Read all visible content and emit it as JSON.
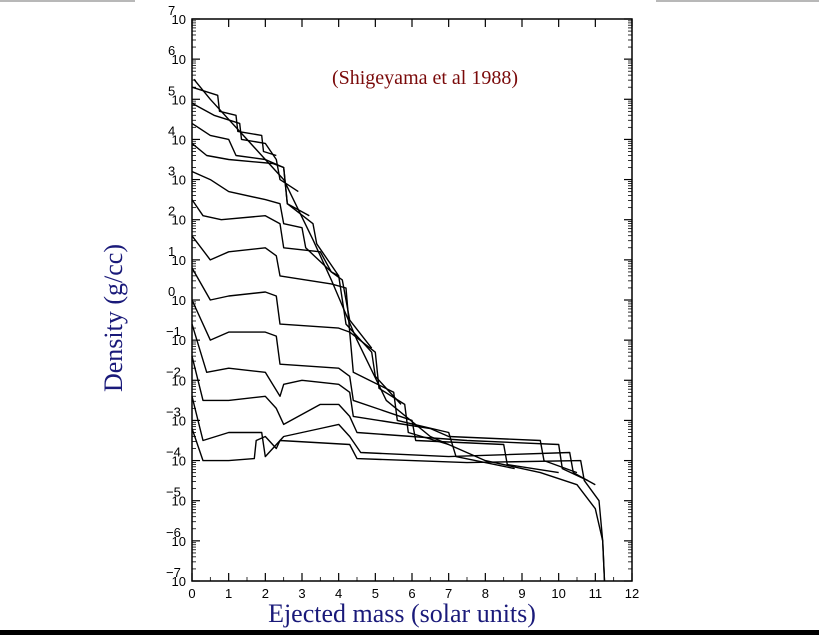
{
  "chart_data": {
    "type": "line",
    "title": "",
    "annotation": "(Shigeyama et al 1988)",
    "xlabel": "Ejected mass (solar units)",
    "ylabel": "Density (g/cc)",
    "xlim": [
      0,
      12
    ],
    "ylim_log10": [
      -7,
      7
    ],
    "x_ticks": [
      "0",
      "1",
      "2",
      "3",
      "4",
      "5",
      "6",
      "7",
      "8",
      "9",
      "10",
      "11",
      "12"
    ],
    "y_ticks": [
      {
        "base": "10",
        "exp": "7"
      },
      {
        "base": "10",
        "exp": "6"
      },
      {
        "base": "10",
        "exp": "5"
      },
      {
        "base": "10",
        "exp": "4"
      },
      {
        "base": "10",
        "exp": "3"
      },
      {
        "base": "10",
        "exp": "2"
      },
      {
        "base": "10",
        "exp": "1"
      },
      {
        "base": "10",
        "exp": "0"
      },
      {
        "base": "10",
        "exp": "-1"
      },
      {
        "base": "10",
        "exp": "-2"
      },
      {
        "base": "10",
        "exp": "-3"
      },
      {
        "base": "10",
        "exp": "-4"
      },
      {
        "base": "10",
        "exp": "-5"
      },
      {
        "base": "10",
        "exp": "-6"
      },
      {
        "base": "10",
        "exp": "-7"
      }
    ],
    "log_y": true,
    "grid": false,
    "series": [
      {
        "values_log10": [
          [
            0.05,
            5.5
          ],
          [
            0.5,
            5.0
          ],
          [
            1.5,
            4.0
          ],
          [
            2.5,
            3.0
          ],
          [
            3.3,
            1.5
          ],
          [
            3.8,
            0.5
          ],
          [
            4.5,
            -1.0
          ],
          [
            5.3,
            -2.5
          ],
          [
            6.5,
            -3.4
          ],
          [
            8.0,
            -4.0
          ],
          [
            9.5,
            -4.3
          ],
          [
            10.5,
            -4.6
          ],
          [
            11.0,
            -5.2
          ],
          [
            11.2,
            -6.0
          ],
          [
            11.25,
            -7.0
          ]
        ]
      },
      {
        "values_log10": [
          [
            0.0,
            5.3
          ],
          [
            0.7,
            5.1
          ],
          [
            0.75,
            4.7
          ],
          [
            1.2,
            4.6
          ],
          [
            1.25,
            4.2
          ],
          [
            1.9,
            4.1
          ],
          [
            1.95,
            3.7
          ],
          [
            2.3,
            3.6
          ]
        ]
      },
      {
        "values_log10": [
          [
            0.0,
            4.9
          ],
          [
            0.6,
            4.6
          ],
          [
            1.3,
            4.4
          ],
          [
            1.35,
            4.0
          ],
          [
            2.0,
            3.9
          ],
          [
            2.3,
            3.5
          ],
          [
            2.4,
            3.0
          ],
          [
            2.9,
            2.7
          ]
        ]
      },
      {
        "values_log10": [
          [
            0.0,
            4.4
          ],
          [
            0.5,
            4.1
          ],
          [
            1.0,
            4.0
          ],
          [
            1.2,
            3.6
          ],
          [
            2.0,
            3.5
          ],
          [
            2.5,
            3.3
          ],
          [
            2.6,
            2.4
          ],
          [
            3.2,
            2.1
          ]
        ]
      },
      {
        "values_log10": [
          [
            0.0,
            3.9
          ],
          [
            0.4,
            3.6
          ],
          [
            1.0,
            3.5
          ],
          [
            2.2,
            3.4
          ],
          [
            2.5,
            3.3
          ],
          [
            2.6,
            2.4
          ],
          [
            3.3,
            1.9
          ],
          [
            3.4,
            1.4
          ],
          [
            4.0,
            0.6
          ]
        ]
      },
      {
        "values_log10": [
          [
            0.0,
            3.2
          ],
          [
            0.5,
            3.0
          ],
          [
            1.0,
            2.7
          ],
          [
            2.0,
            2.5
          ],
          [
            2.4,
            2.4
          ],
          [
            2.5,
            1.9
          ],
          [
            3.0,
            1.8
          ],
          [
            3.1,
            1.3
          ],
          [
            3.8,
            0.7
          ],
          [
            4.1,
            0.5
          ],
          [
            4.3,
            -0.5
          ],
          [
            4.9,
            -1.2
          ]
        ]
      },
      {
        "values_log10": [
          [
            0.0,
            2.5
          ],
          [
            0.3,
            2.1
          ],
          [
            0.8,
            2.0
          ],
          [
            2.0,
            2.1
          ],
          [
            2.4,
            1.9
          ],
          [
            2.5,
            1.3
          ],
          [
            3.5,
            1.2
          ],
          [
            3.8,
            0.7
          ],
          [
            4.0,
            0.6
          ],
          [
            4.2,
            -0.6
          ],
          [
            4.9,
            -1.3
          ],
          [
            5.0,
            -1.9
          ],
          [
            5.7,
            -2.6
          ]
        ]
      },
      {
        "values_log10": [
          [
            0.0,
            1.6
          ],
          [
            0.5,
            1.0
          ],
          [
            1.0,
            1.2
          ],
          [
            2.0,
            1.3
          ],
          [
            2.3,
            1.1
          ],
          [
            2.4,
            0.6
          ],
          [
            3.8,
            0.4
          ],
          [
            4.2,
            0.3
          ],
          [
            4.3,
            -0.8
          ],
          [
            5.0,
            -1.3
          ],
          [
            5.1,
            -2.2
          ],
          [
            5.8,
            -2.6
          ],
          [
            5.9,
            -3.3
          ],
          [
            7.0,
            -3.6
          ]
        ]
      },
      {
        "values_log10": [
          [
            0.0,
            0.8
          ],
          [
            0.5,
            0.0
          ],
          [
            1.0,
            0.1
          ],
          [
            2.0,
            0.2
          ],
          [
            2.3,
            0.1
          ],
          [
            2.4,
            -0.6
          ],
          [
            4.0,
            -0.7
          ],
          [
            4.3,
            -0.8
          ],
          [
            4.4,
            -1.8
          ],
          [
            5.5,
            -2.3
          ],
          [
            5.6,
            -3.0
          ],
          [
            7.0,
            -3.3
          ],
          [
            7.2,
            -3.9
          ],
          [
            8.8,
            -4.2
          ]
        ]
      },
      {
        "values_log10": [
          [
            0.0,
            0.0
          ],
          [
            0.5,
            -1.0
          ],
          [
            1.0,
            -0.8
          ],
          [
            2.0,
            -0.8
          ],
          [
            2.3,
            -0.9
          ],
          [
            2.4,
            -1.6
          ],
          [
            4.0,
            -1.7
          ],
          [
            4.3,
            -1.9
          ],
          [
            4.4,
            -2.5
          ],
          [
            6.0,
            -3.0
          ],
          [
            6.1,
            -3.5
          ],
          [
            8.5,
            -3.6
          ],
          [
            8.6,
            -4.1
          ],
          [
            10.0,
            -4.3
          ]
        ]
      },
      {
        "values_log10": [
          [
            0.0,
            -0.6
          ],
          [
            0.4,
            -1.8
          ],
          [
            1.0,
            -1.7
          ],
          [
            2.0,
            -1.8
          ],
          [
            2.4,
            -2.4
          ],
          [
            2.5,
            -2.1
          ],
          [
            3.0,
            -2.0
          ],
          [
            4.0,
            -2.1
          ],
          [
            4.3,
            -2.3
          ],
          [
            4.4,
            -2.9
          ],
          [
            6.5,
            -3.2
          ],
          [
            7.0,
            -3.4
          ],
          [
            9.5,
            -3.5
          ],
          [
            9.6,
            -4.0
          ],
          [
            10.5,
            -4.3
          ]
        ]
      },
      {
        "values_log10": [
          [
            0.0,
            -1.4
          ],
          [
            0.3,
            -2.5
          ],
          [
            1.0,
            -2.5
          ],
          [
            2.0,
            -2.4
          ],
          [
            2.3,
            -2.7
          ],
          [
            2.5,
            -3.1
          ],
          [
            3.5,
            -2.6
          ],
          [
            4.0,
            -2.6
          ],
          [
            4.3,
            -2.9
          ],
          [
            4.5,
            -3.3
          ],
          [
            7.5,
            -3.5
          ],
          [
            10.0,
            -3.6
          ],
          [
            10.1,
            -4.2
          ],
          [
            10.8,
            -4.5
          ]
        ]
      },
      {
        "values_log10": [
          [
            0.0,
            -2.4
          ],
          [
            0.3,
            -3.5
          ],
          [
            1.0,
            -3.3
          ],
          [
            1.9,
            -3.3
          ],
          [
            2.0,
            -3.9
          ],
          [
            2.5,
            -3.4
          ],
          [
            3.5,
            -3.2
          ],
          [
            4.0,
            -3.1
          ],
          [
            4.3,
            -3.4
          ],
          [
            4.6,
            -3.8
          ],
          [
            7.0,
            -3.9
          ],
          [
            10.3,
            -3.8
          ],
          [
            10.4,
            -4.3
          ],
          [
            11.0,
            -4.6
          ]
        ]
      },
      {
        "values_log10": [
          [
            0.0,
            -3.2
          ],
          [
            0.3,
            -4.0
          ],
          [
            1.0,
            -4.0
          ],
          [
            1.7,
            -3.95
          ],
          [
            1.75,
            -3.5
          ],
          [
            2.0,
            -3.4
          ],
          [
            2.3,
            -3.7
          ],
          [
            2.4,
            -3.5
          ],
          [
            4.3,
            -3.6
          ],
          [
            4.5,
            -3.95
          ],
          [
            7.5,
            -4.05
          ],
          [
            10.6,
            -4.0
          ],
          [
            10.7,
            -4.5
          ],
          [
            11.1,
            -5.0
          ],
          [
            11.2,
            -6.0
          ],
          [
            11.25,
            -7.0
          ]
        ]
      }
    ]
  }
}
